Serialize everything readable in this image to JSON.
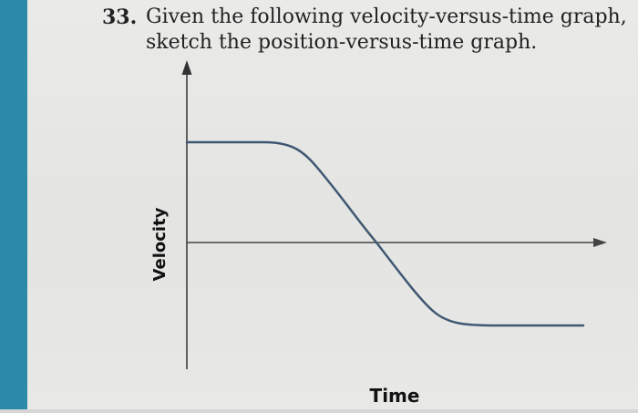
{
  "question": {
    "number": "33.",
    "line1": "Given the following velocity-versus-time graph,",
    "line2": "sketch the position-versus-time graph."
  },
  "graph": {
    "ylabel": "Velocity",
    "xlabel": "Time"
  },
  "colors": {
    "left_bar": "#2a8aa8",
    "curve": "#3f5872",
    "axis": "#333333"
  }
}
